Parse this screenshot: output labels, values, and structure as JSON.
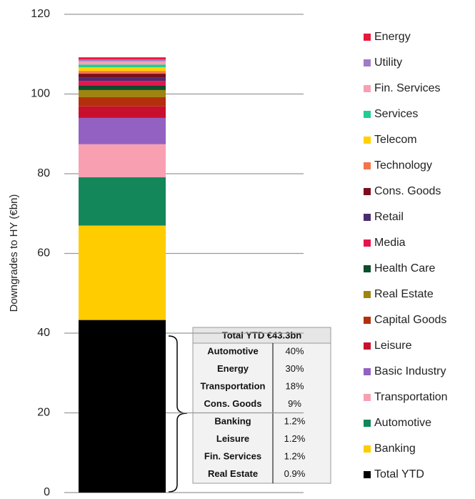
{
  "chart_data": {
    "type": "stacked_bar",
    "y_label": "Downgrades to HY (€bn)",
    "ylim": [
      0,
      120
    ],
    "yticks": [
      0,
      20,
      40,
      60,
      80,
      100,
      120
    ],
    "grid": true,
    "series": [
      {
        "name": "Total YTD",
        "color": "#000000",
        "values": [
          43.3
        ]
      },
      {
        "name": "Banking",
        "color": "#ffcc00",
        "values": [
          23.7
        ]
      },
      {
        "name": "Automotive",
        "color": "#13875a",
        "values": [
          12.1
        ]
      },
      {
        "name": "Transportation",
        "color": "#f8a0b2",
        "values": [
          8.3
        ]
      },
      {
        "name": "Basic Industry",
        "color": "#9361c2",
        "values": [
          6.6
        ]
      },
      {
        "name": "Leisure",
        "color": "#c8102e",
        "values": [
          2.9
        ]
      },
      {
        "name": "Capital Goods",
        "color": "#b3300c",
        "values": [
          2.3
        ]
      },
      {
        "name": "Real Estate",
        "color": "#9e8410",
        "values": [
          1.8
        ]
      },
      {
        "name": "Health Care",
        "color": "#0b4d2c",
        "values": [
          1.2
        ]
      },
      {
        "name": "Media",
        "color": "#e6164d",
        "values": [
          1.1
        ]
      },
      {
        "name": "Retail",
        "color": "#4b2d6e",
        "values": [
          0.9
        ]
      },
      {
        "name": "Cons. Goods",
        "color": "#7b0d1e",
        "values": [
          0.9
        ]
      },
      {
        "name": "Technology",
        "color": "#f2764b",
        "values": [
          0.7
        ]
      },
      {
        "name": "Telecom",
        "color": "#ffd100",
        "values": [
          0.9
        ]
      },
      {
        "name": "Services",
        "color": "#1fcf8f",
        "values": [
          0.7
        ]
      },
      {
        "name": "Fin. Services",
        "color": "#f7a0b4",
        "values": [
          0.8
        ]
      },
      {
        "name": "Utility",
        "color": "#a07cc5",
        "values": [
          0.5
        ]
      },
      {
        "name": "Energy",
        "color": "#e8173c",
        "values": [
          0.5
        ]
      }
    ]
  },
  "table": {
    "title": "Total YTD €43.3bn",
    "rows": [
      [
        "Automotive",
        "40%"
      ],
      [
        "Energy",
        "30%"
      ],
      [
        "Transportation",
        "18%"
      ],
      [
        "Cons. Goods",
        "9%"
      ],
      [
        "Banking",
        "1.2%"
      ],
      [
        "Leisure",
        "1.2%"
      ],
      [
        "Fin. Services",
        "1.2%"
      ],
      [
        "Real Estate",
        "0.9%"
      ]
    ]
  }
}
